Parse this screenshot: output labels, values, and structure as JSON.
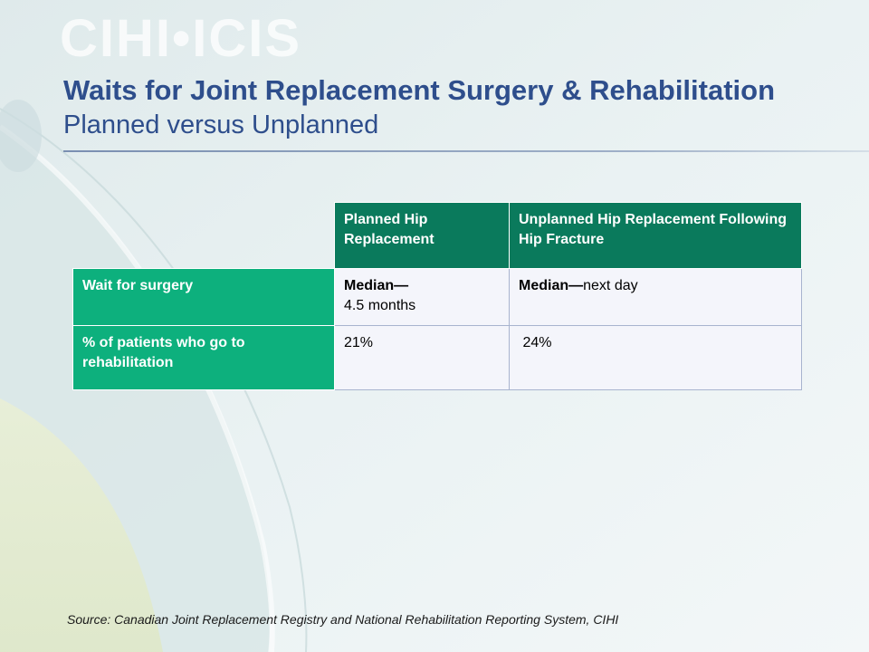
{
  "logo": {
    "text": "CIHI•ICIS"
  },
  "slide": {
    "title": "Waits for Joint Replacement Surgery & Rehabilitation",
    "subtitle": "Planned versus Unplanned"
  },
  "table": {
    "headers": {
      "planned": "Planned Hip Replacement",
      "unplanned": "Unplanned Hip Replacement Following Hip Fracture"
    },
    "rows": [
      {
        "label": "Wait for surgery",
        "planned_bold": "Median—",
        "planned_plain": "4.5 months",
        "unplanned_bold": "Median—",
        "unplanned_plain": "next day"
      },
      {
        "label": "% of patients who go to rehabilitation",
        "planned_plain": "21%",
        "unplanned_plain": " 24%"
      }
    ]
  },
  "source": "Source: Canadian Joint Replacement Registry and National Rehabilitation Reporting System, CIHI",
  "colors": {
    "title": "#2e4e8c",
    "header_bg": "#0a7a5c",
    "row_label_bg": "#0db07d",
    "cell_bg": "#f4f5fb"
  }
}
